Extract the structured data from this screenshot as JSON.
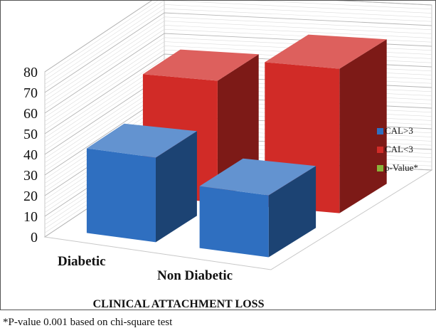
{
  "chart_data": {
    "type": "bar",
    "categories": [
      "Diabetic",
      "Non Diabetic"
    ],
    "series": [
      {
        "name": "CAL>3",
        "values": [
          41,
          30
        ],
        "color": "#2f6fc0"
      },
      {
        "name": "CAL<3",
        "values": [
          59,
          70
        ],
        "color": "#d12b27"
      },
      {
        "name": "p-Value*",
        "values": [
          0,
          0
        ],
        "color": "#8ab43a"
      }
    ],
    "xlabel": "CLINICAL ATTACHMENT LOSS",
    "ylabel": "",
    "ylim": [
      0,
      80
    ],
    "yticks": [
      "0",
      "10",
      "20",
      "30",
      "40",
      "50",
      "60",
      "70",
      "80"
    ],
    "grid": true,
    "legend_position": "right",
    "three_d": true
  },
  "footnote": "*P-value 0.001 based on chi-square test"
}
